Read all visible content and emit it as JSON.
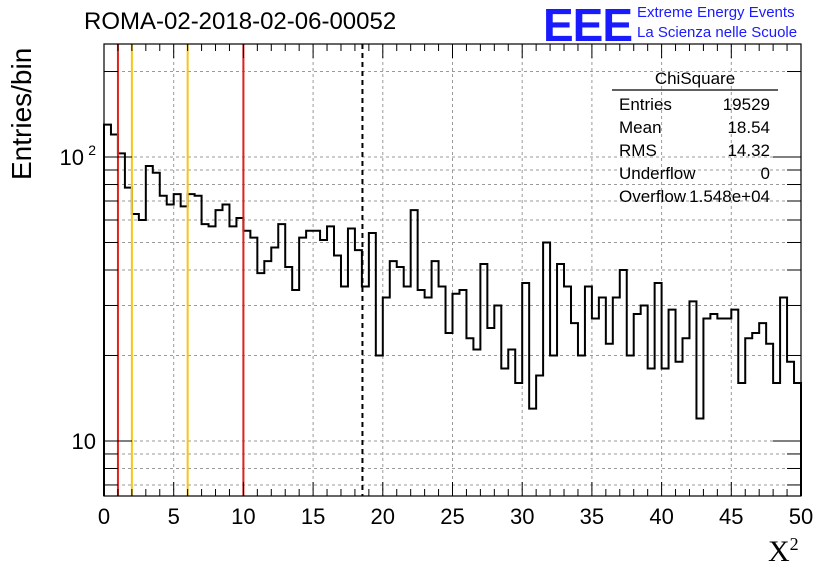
{
  "header": {
    "run_title": "ROMA-02-2018-02-06-00052",
    "logo_text": "EEE",
    "logo_line1": "Extreme Energy Events",
    "logo_line2": "La Scienza nelle Scuole"
  },
  "chart_data": {
    "type": "histogram",
    "title": "ROMA-02-2018-02-06-00052",
    "xlabel": "X",
    "xlabel_superscript": "2",
    "ylabel": "Entries/bin",
    "xlim": [
      0,
      50
    ],
    "ylim": [
      6.4,
      250
    ],
    "yscale": "log",
    "grid": true,
    "x_ticks": [
      0,
      5,
      10,
      15,
      20,
      25,
      30,
      35,
      40,
      45,
      50
    ],
    "y_tick_labels": [
      {
        "value": 10,
        "base": "10",
        "exp": ""
      },
      {
        "value": 100,
        "base": "10",
        "exp": "2"
      }
    ],
    "bin_width": 0.5,
    "bin_start": 0,
    "values": [
      130,
      120,
      103,
      78,
      63,
      60,
      93,
      88,
      73,
      68,
      74,
      67,
      74,
      73,
      58,
      57,
      65,
      68,
      57,
      61,
      55,
      52,
      39,
      43,
      48,
      58,
      41,
      34,
      52,
      55,
      55,
      51,
      57,
      45,
      35,
      56,
      47,
      35,
      54,
      20,
      32,
      43,
      41,
      35,
      65,
      34,
      32,
      43,
      35,
      24,
      33,
      34,
      23,
      21,
      42,
      25,
      30,
      18,
      21,
      16,
      36,
      13,
      17,
      50,
      20,
      42,
      35,
      26,
      20,
      35,
      27,
      32,
      22,
      32,
      40,
      20,
      28,
      30,
      18,
      36,
      18,
      29,
      19,
      23,
      31,
      12,
      27,
      28,
      27,
      27,
      29,
      16,
      23,
      24,
      26,
      22,
      16,
      32,
      19,
      16
    ],
    "reference_lines": [
      {
        "x": 1,
        "color": "#e0201c"
      },
      {
        "x": 10,
        "color": "#e0201c"
      },
      {
        "x": 2,
        "color": "#f5c518"
      },
      {
        "x": 6,
        "color": "#f5c518"
      },
      {
        "x": 18.54,
        "color": "#000000",
        "dashed": true
      }
    ],
    "stats_box": {
      "title": "ChiSquare",
      "rows": [
        {
          "label": "Entries",
          "value": "19529"
        },
        {
          "label": "Mean",
          "value": "18.54"
        },
        {
          "label": "RMS",
          "value": "14.32"
        },
        {
          "label": "Underflow",
          "value": "0"
        },
        {
          "label": "Overflow",
          "value": "1.548e+04"
        }
      ]
    },
    "colors": {
      "histogram": "#000000",
      "grid": "#9a9a9a"
    }
  }
}
